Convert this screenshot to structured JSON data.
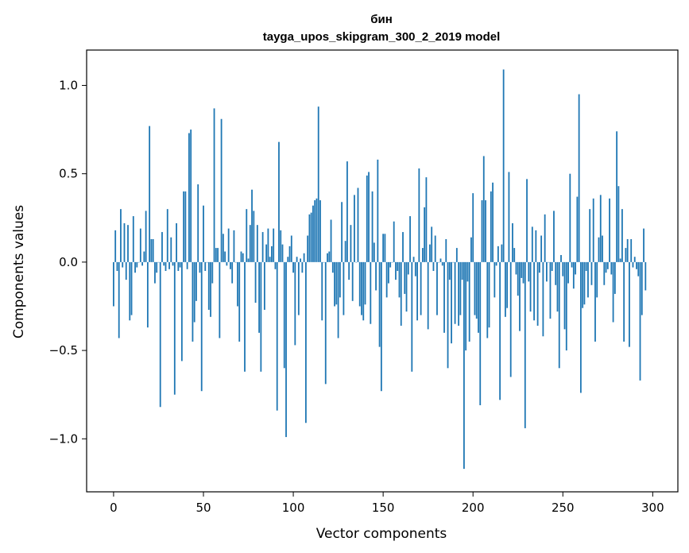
{
  "chart_data": {
    "type": "bar",
    "title_line1": "бин",
    "title_line2": "tayga_upos_skipgram_300_2_2019 model",
    "xlabel": "Vector components",
    "ylabel": "Components values",
    "xlim": [
      -15,
      314
    ],
    "ylim": [
      -1.3,
      1.2
    ],
    "xticks": [
      0,
      50,
      100,
      150,
      200,
      250,
      300
    ],
    "xtick_labels": [
      "0",
      "50",
      "100",
      "150",
      "200",
      "250",
      "300"
    ],
    "yticks": [
      -1.0,
      -0.5,
      0.0,
      0.5,
      1.0
    ],
    "ytick_labels": [
      "−1.0",
      "−0.5",
      "0.0",
      "0.5",
      "1.0"
    ],
    "bar_color": "#1f77b4",
    "grid": false,
    "values": [
      -0.25,
      0.18,
      -0.05,
      -0.43,
      0.3,
      -0.03,
      0.22,
      -0.1,
      0.21,
      -0.33,
      -0.3,
      0.26,
      -0.06,
      -0.03,
      0.0,
      0.19,
      -0.02,
      0.06,
      0.29,
      -0.37,
      0.77,
      0.13,
      0.13,
      -0.12,
      -0.06,
      0.0,
      -0.82,
      0.17,
      -0.02,
      -0.05,
      0.3,
      -0.04,
      0.14,
      -0.02,
      -0.75,
      0.22,
      -0.05,
      -0.03,
      -0.56,
      0.4,
      0.4,
      -0.04,
      0.73,
      0.75,
      -0.45,
      -0.34,
      -0.22,
      0.44,
      -0.06,
      -0.73,
      0.32,
      -0.05,
      0.0,
      -0.27,
      -0.31,
      -0.12,
      0.87,
      0.08,
      0.08,
      -0.43,
      0.81,
      0.16,
      0.06,
      -0.02,
      0.19,
      -0.04,
      -0.12,
      0.18,
      0.0,
      -0.25,
      -0.45,
      0.06,
      0.05,
      -0.62,
      0.3,
      0.02,
      0.21,
      0.41,
      0.29,
      -0.23,
      0.21,
      -0.4,
      -0.62,
      0.17,
      -0.27,
      0.1,
      0.19,
      0.03,
      0.09,
      0.19,
      -0.04,
      -0.84,
      0.68,
      0.18,
      0.1,
      -0.6,
      -0.99,
      0.03,
      0.09,
      0.15,
      -0.06,
      -0.47,
      0.03,
      -0.3,
      0.02,
      -0.06,
      0.05,
      -0.91,
      0.15,
      0.27,
      0.28,
      0.32,
      0.35,
      0.36,
      0.88,
      0.35,
      -0.33,
      0.0,
      -0.69,
      0.05,
      0.06,
      0.24,
      -0.06,
      -0.25,
      -0.24,
      -0.43,
      -0.2,
      0.34,
      -0.3,
      0.12,
      0.57,
      -0.1,
      0.21,
      -0.22,
      0.38,
      0.0,
      0.42,
      -0.25,
      -0.3,
      -0.33,
      -0.24,
      0.49,
      0.51,
      -0.35,
      0.4,
      0.11,
      -0.16,
      0.58,
      -0.48,
      -0.73,
      0.16,
      0.16,
      -0.2,
      -0.12,
      -0.03,
      0.0,
      0.23,
      -0.1,
      -0.05,
      -0.2,
      -0.36,
      0.17,
      -0.18,
      -0.28,
      -0.07,
      0.26,
      -0.62,
      0.03,
      -0.08,
      -0.33,
      0.53,
      -0.3,
      0.08,
      0.31,
      0.48,
      -0.38,
      0.1,
      0.2,
      -0.05,
      0.15,
      -0.3,
      0.0,
      0.02,
      -0.02,
      -0.4,
      0.13,
      -0.6,
      -0.1,
      -0.46,
      0.0,
      -0.35,
      0.08,
      -0.36,
      -0.3,
      -0.1,
      -1.17,
      -0.5,
      -0.11,
      -0.45,
      0.14,
      0.39,
      -0.3,
      -0.32,
      -0.4,
      -0.81,
      0.35,
      0.6,
      0.35,
      -0.43,
      -0.37,
      0.4,
      0.45,
      -0.2,
      -0.02,
      0.09,
      -0.78,
      0.1,
      1.09,
      -0.31,
      -0.26,
      0.51,
      -0.65,
      0.22,
      0.08,
      -0.07,
      -0.19,
      -0.39,
      -0.09,
      -0.12,
      -0.94,
      0.47,
      -0.11,
      -0.28,
      0.2,
      -0.33,
      0.18,
      -0.36,
      -0.06,
      0.15,
      -0.42,
      0.27,
      -0.11,
      0.0,
      -0.32,
      -0.05,
      0.29,
      -0.13,
      -0.28,
      -0.6,
      0.04,
      -0.08,
      -0.38,
      -0.5,
      -0.12,
      0.5,
      -0.03,
      -0.15,
      -0.07,
      0.37,
      0.95,
      -0.74,
      -0.26,
      -0.24,
      -0.05,
      -0.2,
      0.3,
      -0.13,
      0.36,
      -0.45,
      -0.2,
      0.14,
      0.38,
      0.15,
      -0.13,
      -0.06,
      -0.04,
      0.36,
      -0.07,
      -0.34,
      -0.18,
      0.74,
      0.43,
      0.02,
      0.3,
      -0.45,
      0.08,
      0.13,
      -0.48,
      0.13,
      -0.03,
      0.03,
      -0.04,
      -0.08,
      -0.67,
      -0.3,
      0.19,
      -0.16
    ]
  }
}
